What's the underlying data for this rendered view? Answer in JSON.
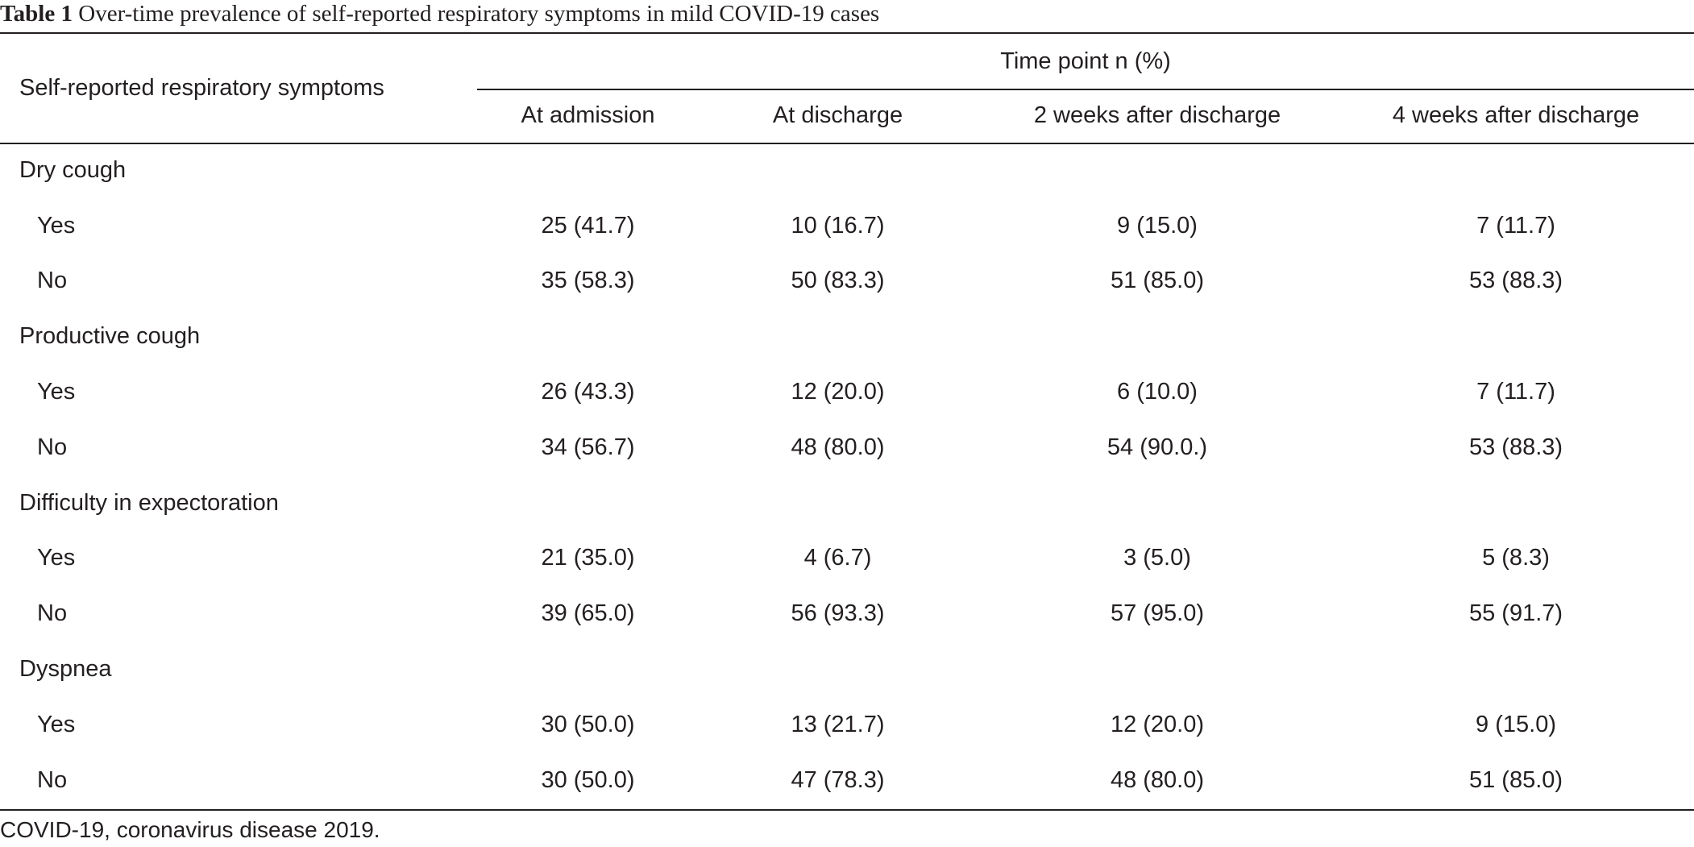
{
  "caption": {
    "label": "Table 1",
    "text": "Over-time prevalence of self-reported respiratory symptoms in mild COVID-19 cases"
  },
  "table": {
    "stub_header": "Self-reported respiratory symptoms",
    "group_header": "Time point n (%)",
    "columns": [
      "At admission",
      "At discharge",
      "2 weeks after discharge",
      "4 weeks after discharge"
    ],
    "sections": [
      {
        "title": "Dry cough",
        "rows": [
          {
            "label": "Yes",
            "values": [
              "25 (41.7)",
              "10 (16.7)",
              "9 (15.0)",
              "7 (11.7)"
            ]
          },
          {
            "label": "No",
            "values": [
              "35 (58.3)",
              "50 (83.3)",
              "51 (85.0)",
              "53 (88.3)"
            ]
          }
        ]
      },
      {
        "title": "Productive cough",
        "rows": [
          {
            "label": "Yes",
            "values": [
              "26 (43.3)",
              "12 (20.0)",
              "6 (10.0)",
              "7 (11.7)"
            ]
          },
          {
            "label": "No",
            "values": [
              "34 (56.7)",
              "48 (80.0)",
              "54 (90.0.)",
              "53 (88.3)"
            ]
          }
        ]
      },
      {
        "title": "Difficulty in expectoration",
        "rows": [
          {
            "label": "Yes",
            "values": [
              "21 (35.0)",
              "4 (6.7)",
              "3 (5.0)",
              "5 (8.3)"
            ]
          },
          {
            "label": "No",
            "values": [
              "39 (65.0)",
              "56 (93.3)",
              "57 (95.0)",
              "55 (91.7)"
            ]
          }
        ]
      },
      {
        "title": "Dyspnea",
        "rows": [
          {
            "label": "Yes",
            "values": [
              "30 (50.0)",
              "13 (21.7)",
              "12 (20.0)",
              "9 (15.0)"
            ]
          },
          {
            "label": "No",
            "values": [
              "30 (50.0)",
              "47 (78.3)",
              "48 (80.0)",
              "51 (85.0)"
            ]
          }
        ]
      }
    ]
  },
  "footnote": "COVID-19, coronavirus disease 2019."
}
